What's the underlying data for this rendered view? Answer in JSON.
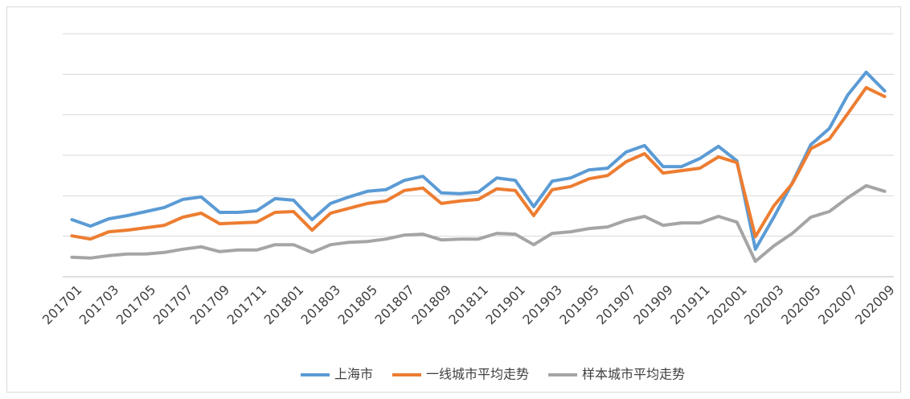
{
  "chart_data": {
    "type": "line",
    "categories": [
      "201701",
      null,
      "201703",
      null,
      "201705",
      null,
      "201707",
      null,
      "201709",
      null,
      "201711",
      null,
      "201801",
      null,
      "201803",
      null,
      "201805",
      null,
      "201807",
      null,
      "201809",
      null,
      "201811",
      null,
      "201901",
      null,
      "201903",
      null,
      "201905",
      null,
      "201907",
      null,
      "201909",
      null,
      "201911",
      null,
      "202001",
      null,
      "202003",
      null,
      "202005",
      null,
      "202007",
      null,
      "202009"
    ],
    "series": [
      {
        "name": "上海市",
        "color": "#5b9bd5",
        "values": [
          1.41,
          1.25,
          1.43,
          1.51,
          1.61,
          1.71,
          1.91,
          1.97,
          1.59,
          1.59,
          1.63,
          1.93,
          1.89,
          1.41,
          1.81,
          1.97,
          2.11,
          2.15,
          2.38,
          2.48,
          2.07,
          2.05,
          2.09,
          2.44,
          2.38,
          1.73,
          2.36,
          2.44,
          2.64,
          2.68,
          3.08,
          3.24,
          2.72,
          2.72,
          2.92,
          3.22,
          2.86,
          0.68,
          1.47,
          2.32,
          3.26,
          3.66,
          4.49,
          5.05,
          4.59
        ]
      },
      {
        "name": "一线城市平均走势",
        "color": "#ed7d31",
        "values": [
          1.01,
          0.93,
          1.11,
          1.15,
          1.21,
          1.27,
          1.47,
          1.57,
          1.31,
          1.33,
          1.35,
          1.59,
          1.61,
          1.15,
          1.57,
          1.69,
          1.81,
          1.87,
          2.13,
          2.19,
          1.81,
          1.87,
          1.91,
          2.17,
          2.13,
          1.51,
          2.15,
          2.23,
          2.42,
          2.5,
          2.84,
          3.04,
          2.56,
          2.62,
          2.68,
          2.96,
          2.82,
          0.99,
          1.75,
          2.3,
          3.16,
          3.4,
          4.03,
          4.67,
          4.45
        ]
      },
      {
        "name": "样本城市平均走势",
        "color": "#a5a5a5",
        "values": [
          0.48,
          0.46,
          0.52,
          0.56,
          0.56,
          0.6,
          0.68,
          0.74,
          0.62,
          0.66,
          0.66,
          0.79,
          0.79,
          0.6,
          0.79,
          0.85,
          0.87,
          0.93,
          1.03,
          1.05,
          0.91,
          0.93,
          0.93,
          1.07,
          1.05,
          0.79,
          1.07,
          1.11,
          1.19,
          1.23,
          1.39,
          1.49,
          1.27,
          1.33,
          1.33,
          1.49,
          1.35,
          0.38,
          0.76,
          1.07,
          1.47,
          1.61,
          1.95,
          2.25,
          2.11
        ]
      }
    ],
    "ylim": [
      0,
      6
    ],
    "yticks": [
      0,
      1,
      2,
      3,
      4,
      5,
      6
    ],
    "grid": true,
    "legend": "bottom"
  }
}
